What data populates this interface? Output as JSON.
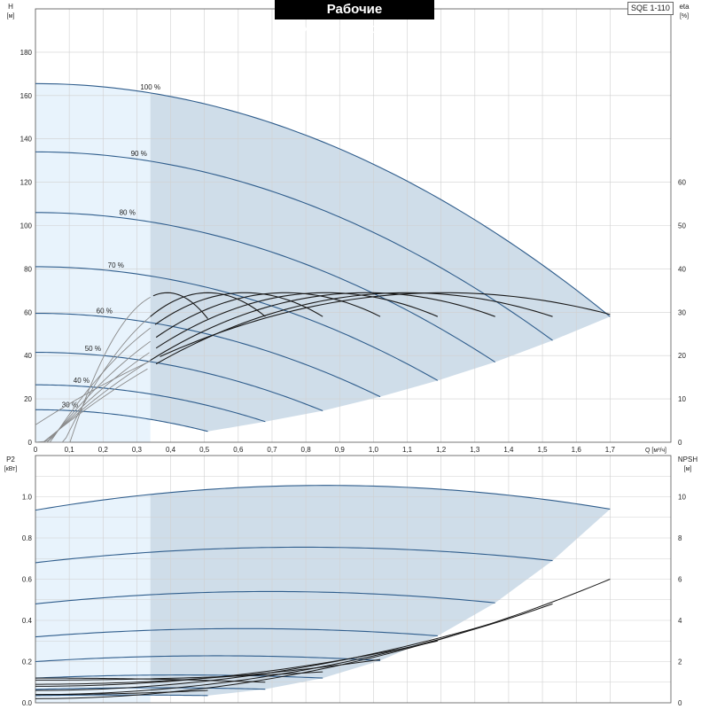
{
  "header": {
    "title": "Рабочие характеристики",
    "model": "SQE 1-110"
  },
  "colors": {
    "curve_blue": "#2f5d8c",
    "fill_main": "#cfdde9",
    "fill_light": "#e8f3fc",
    "eff_black": "#1a1a1a",
    "eff_grey": "#8a8a8a",
    "grid": "#d0d0d0"
  },
  "chart_data": [
    {
      "type": "line",
      "panel": "head",
      "left_axis": {
        "label": "H",
        "unit": "[м]",
        "ylim": [
          0,
          200
        ],
        "ticks": [
          0,
          20,
          40,
          60,
          80,
          100,
          120,
          140,
          160,
          180
        ]
      },
      "right_axis": {
        "label": "eta",
        "unit": "[%]",
        "ylim": [
          0,
          100
        ],
        "ticks": [
          0,
          10,
          20,
          30,
          40,
          50,
          60
        ]
      },
      "x_axis": {
        "label": "Q [м³/ч]",
        "xlim": [
          0,
          1.88
        ],
        "ticks": [
          "0",
          "0,1",
          "0,2",
          "0,3",
          "0,4",
          "0,5",
          "0,6",
          "0,7",
          "0,8",
          "0,9",
          "1,0",
          "1,1",
          "1,2",
          "1,3",
          "1,4",
          "1,5",
          "1,6",
          "1,7"
        ]
      },
      "grid": true,
      "shaded_region_min_q": 0.34,
      "head_curves": [
        {
          "name": "100 %",
          "h0": 165.5,
          "qmax": 1.7,
          "hend": 58
        },
        {
          "name": "90 %",
          "h0": 134,
          "qmax": 1.53,
          "hend": 47
        },
        {
          "name": "80 %",
          "h0": 106,
          "qmax": 1.36,
          "hend": 37
        },
        {
          "name": "70 %",
          "h0": 81,
          "qmax": 1.19,
          "hend": 28.5
        },
        {
          "name": "60 %",
          "h0": 59.5,
          "qmax": 1.02,
          "hend": 21
        },
        {
          "name": "50 %",
          "h0": 41.5,
          "qmax": 0.85,
          "hend": 14.5
        },
        {
          "name": "40 %",
          "h0": 26.5,
          "qmax": 0.68,
          "hend": 9.5
        },
        {
          "name": "30 %",
          "h0": 15,
          "qmax": 0.51,
          "hend": 5
        }
      ],
      "efficiency_peak": 34.5,
      "efficiency_curves": [
        {
          "q_peak": 0.39,
          "q_end": 0.51,
          "eta_end": 28.5
        },
        {
          "q_peak": 0.51,
          "q_end": 0.68,
          "eta_end": 29
        },
        {
          "q_peak": 0.62,
          "q_end": 0.85,
          "eta_end": 29
        },
        {
          "q_peak": 0.74,
          "q_end": 1.02,
          "eta_end": 29
        },
        {
          "q_peak": 0.86,
          "q_end": 1.19,
          "eta_end": 29
        },
        {
          "q_peak": 0.98,
          "q_end": 1.36,
          "eta_end": 29
        },
        {
          "q_peak": 1.1,
          "q_end": 1.53,
          "eta_end": 29
        },
        {
          "q_peak": 1.21,
          "q_end": 1.7,
          "eta_end": 29.5
        }
      ]
    },
    {
      "type": "line",
      "panel": "power",
      "left_axis": {
        "label": "P2",
        "unit": "[кВт]",
        "ylim": [
          0,
          1.2
        ],
        "ticks": [
          "0.0",
          "0.2",
          "0.4",
          "0.6",
          "0.8",
          "1.0"
        ]
      },
      "right_axis": {
        "label": "NPSH",
        "unit": "[м]",
        "ylim": [
          0,
          12
        ],
        "ticks": [
          0,
          2,
          4,
          6,
          8,
          10
        ]
      },
      "x_axis": {
        "xlim": [
          0,
          1.88
        ]
      },
      "grid": true,
      "power_curves": [
        {
          "p0": 0.935,
          "ppeak": 1.055,
          "qmax": 1.7,
          "pend": 0.94
        },
        {
          "p0": 0.68,
          "ppeak": 0.755,
          "qmax": 1.53,
          "pend": 0.69
        },
        {
          "p0": 0.48,
          "ppeak": 0.54,
          "qmax": 1.36,
          "pend": 0.485
        },
        {
          "p0": 0.32,
          "ppeak": 0.36,
          "qmax": 1.19,
          "pend": 0.325
        },
        {
          "p0": 0.2,
          "ppeak": 0.228,
          "qmax": 1.02,
          "pend": 0.205
        },
        {
          "p0": 0.12,
          "ppeak": 0.135,
          "qmax": 0.85,
          "pend": 0.12
        },
        {
          "p0": 0.065,
          "ppeak": 0.073,
          "qmax": 0.68,
          "pend": 0.066
        },
        {
          "p0": 0.035,
          "ppeak": 0.038,
          "qmax": 0.51,
          "pend": 0.035
        }
      ],
      "npsh_curves": [
        {
          "q_end": 1.7,
          "npsh_end": 6.0,
          "npsh0": 0.2
        },
        {
          "q_end": 1.53,
          "npsh_end": 4.8,
          "npsh0": 0.4
        },
        {
          "q_end": 1.36,
          "npsh_end": 3.9,
          "npsh0": 0.6
        },
        {
          "q_end": 1.19,
          "npsh_end": 3.0,
          "npsh0": 0.8
        },
        {
          "q_end": 1.02,
          "npsh_end": 2.1,
          "npsh0": 0.9
        },
        {
          "q_end": 0.85,
          "npsh_end": 1.5,
          "npsh0": 1.1
        },
        {
          "q_end": 0.68,
          "npsh_end": 1.0,
          "npsh0": 1.2
        },
        {
          "q_end": 0.51,
          "npsh_end": 0.6,
          "npsh0": 0.4
        }
      ]
    }
  ]
}
